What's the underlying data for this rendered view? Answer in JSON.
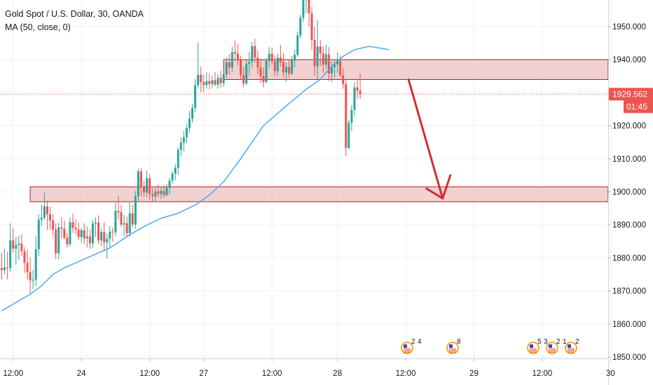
{
  "legend": {
    "title": "Gold Spot / U.S. Dollar, 30, OANDA",
    "indicator": "MA (50, close, 0)"
  },
  "price_tag": {
    "value": "1929.562",
    "countdown": "01:45"
  },
  "colors": {
    "up": "#26a69a",
    "down": "#ef5350",
    "ma": "#42a5f5",
    "zone_fill": "#e8b3b3",
    "zone_stroke": "#b71c1c",
    "arrow": "#d32f2f",
    "tag_bg": "#ef5350",
    "grid": "#eef0f3"
  },
  "event_markers": [
    {
      "position": 581,
      "labels": [
        "2",
        "4"
      ]
    },
    {
      "position": 646,
      "labels": [
        "8"
      ]
    },
    {
      "position": 761,
      "labels": [
        "5",
        "3"
      ]
    },
    {
      "position": 788,
      "labels": [
        "2",
        "1"
      ]
    },
    {
      "position": 815,
      "labels": [
        "2"
      ]
    }
  ],
  "chart_data": {
    "type": "candlestick",
    "title": "Gold Spot / U.S. Dollar, 30, OANDA",
    "symbol": "XAUUSD",
    "timeframe": "30",
    "source": "OANDA",
    "y_axis": {
      "range": [
        1848,
        1958
      ],
      "ticks": [
        "1950.000",
        "1940.000",
        "1930.000",
        "1920.000",
        "1910.000",
        "1900.000",
        "1890.000",
        "1880.000",
        "1870.000",
        "1860.000",
        "1850.000"
      ]
    },
    "x_axis": {
      "ticks": [
        {
          "label": "12:00",
          "bar": 4
        },
        {
          "label": "24",
          "bar": 28
        },
        {
          "label": "12:00",
          "bar": 52
        },
        {
          "label": "27",
          "bar": 71
        },
        {
          "label": "12:00",
          "bar": 95
        },
        {
          "label": "28",
          "bar": 118
        },
        {
          "label": "12:00",
          "bar": 142
        },
        {
          "label": "29",
          "bar": 166
        },
        {
          "label": "12:00",
          "bar": 190
        },
        {
          "label": "30",
          "bar": 214
        }
      ]
    },
    "indicator": "MA (50, close, 0)",
    "current_price": 1929.562,
    "zones": [
      {
        "from_bar": 78,
        "to_bar": 214,
        "low": 1934,
        "high": 1940
      },
      {
        "from_bar": 10,
        "to_bar": 214,
        "low": 1897,
        "high": 1901.5
      }
    ],
    "projection_arrow": {
      "from_bar": 143,
      "from_price": 1934,
      "to_bar": 155,
      "to_price": 1898
    },
    "candles": [
      [
        1876.9,
        1881.6,
        1873.4,
        1876.3
      ],
      [
        1876.3,
        1882.7,
        1875,
        1877.1
      ],
      [
        1877.1,
        1881.9,
        1873.5,
        1876.9
      ],
      [
        1876.9,
        1890.5,
        1875.8,
        1885.3
      ],
      [
        1885.3,
        1889,
        1881.7,
        1882.8
      ],
      [
        1882.8,
        1886.3,
        1877.9,
        1883.9
      ],
      [
        1883.9,
        1886.6,
        1879.3,
        1884.3
      ],
      [
        1884.3,
        1887.1,
        1880.6,
        1882
      ],
      [
        1882,
        1883.3,
        1875.4,
        1878.5
      ],
      [
        1878.5,
        1882.5,
        1873.4,
        1875.7
      ],
      [
        1875.7,
        1880.1,
        1869.2,
        1873.2
      ],
      [
        1873.2,
        1876.4,
        1870.6,
        1873.4
      ],
      [
        1873.4,
        1886.5,
        1871.4,
        1882.6
      ],
      [
        1882.6,
        1893.2,
        1880.6,
        1891.6
      ],
      [
        1891.6,
        1896.2,
        1889.6,
        1892.2
      ],
      [
        1892.2,
        1899.7,
        1891.6,
        1895.6
      ],
      [
        1895.6,
        1897.3,
        1888.4,
        1893.2
      ],
      [
        1893.2,
        1895.6,
        1888.5,
        1891.3
      ],
      [
        1891.3,
        1893.2,
        1886.8,
        1888.6
      ],
      [
        1888.6,
        1890.5,
        1879.6,
        1881.4
      ],
      [
        1881.4,
        1890.6,
        1879.5,
        1889.2
      ],
      [
        1889.2,
        1892.3,
        1885.8,
        1888.8
      ],
      [
        1888.8,
        1891.3,
        1885.5,
        1886.1
      ],
      [
        1886.1,
        1887.6,
        1883.1,
        1884.1
      ],
      [
        1884.1,
        1892.2,
        1883.4,
        1890.8
      ],
      [
        1890.8,
        1893.5,
        1887.6,
        1889.1
      ],
      [
        1889.1,
        1891.7,
        1887.1,
        1888.6
      ],
      [
        1888.6,
        1890.8,
        1885.3,
        1886.3
      ],
      [
        1886.3,
        1889.1,
        1884.6,
        1888.4
      ],
      [
        1888.4,
        1890.5,
        1884.2,
        1885.9
      ],
      [
        1885.9,
        1889.5,
        1883.1,
        1886.5
      ],
      [
        1886.5,
        1888.6,
        1882.7,
        1884.4
      ],
      [
        1884.4,
        1891.6,
        1883,
        1890.4
      ],
      [
        1890.4,
        1892.3,
        1886.3,
        1890.7
      ],
      [
        1890.7,
        1892.9,
        1884.2,
        1885.3
      ],
      [
        1885.3,
        1888.8,
        1883.6,
        1887.8
      ],
      [
        1887.8,
        1890.8,
        1882.2,
        1884.7
      ],
      [
        1884.7,
        1887.3,
        1879.8,
        1885.8
      ],
      [
        1885.8,
        1889.6,
        1883.2,
        1887.9
      ],
      [
        1887.9,
        1889.2,
        1884.9,
        1887.8
      ],
      [
        1887.8,
        1896.8,
        1886.5,
        1894.2
      ],
      [
        1894.2,
        1898.7,
        1891.6,
        1893.8
      ],
      [
        1893.8,
        1896,
        1889.3,
        1890.1
      ],
      [
        1890.1,
        1893,
        1886.5,
        1890.5
      ],
      [
        1890.5,
        1892.5,
        1886.2,
        1887.5
      ],
      [
        1887.5,
        1896.8,
        1886.4,
        1893.5
      ],
      [
        1893.5,
        1896.1,
        1889.3,
        1890.1
      ],
      [
        1890.1,
        1900.2,
        1888.8,
        1898.6
      ],
      [
        1898.6,
        1907,
        1897,
        1906.2
      ],
      [
        1906.2,
        1907.2,
        1898.6,
        1901.4
      ],
      [
        1901.4,
        1903.3,
        1898.5,
        1899.8
      ],
      [
        1899.8,
        1906.4,
        1898.4,
        1904.1
      ],
      [
        1904.1,
        1905.3,
        1897.6,
        1899.3
      ],
      [
        1899.3,
        1901.1,
        1896.8,
        1898.6
      ],
      [
        1898.6,
        1901.3,
        1897.2,
        1900.1
      ],
      [
        1900.1,
        1902.2,
        1898.4,
        1899.3
      ],
      [
        1899.3,
        1901.5,
        1897.9,
        1900.3
      ],
      [
        1900.3,
        1902,
        1898.2,
        1899
      ],
      [
        1899,
        1902.3,
        1898.7,
        1901.2
      ],
      [
        1901.2,
        1904.1,
        1899.2,
        1903.4
      ],
      [
        1903.4,
        1906.2,
        1902.5,
        1905.5
      ],
      [
        1905.5,
        1908.4,
        1903.5,
        1907.3
      ],
      [
        1907.3,
        1913.4,
        1905.1,
        1912.7
      ],
      [
        1912.7,
        1916.5,
        1910.7,
        1914.9
      ],
      [
        1914.9,
        1918.5,
        1912.3,
        1916.5
      ],
      [
        1916.5,
        1920.5,
        1914.7,
        1919.3
      ],
      [
        1919.3,
        1924.5,
        1917.9,
        1922.1
      ],
      [
        1922.1,
        1926.6,
        1921,
        1925.4
      ],
      [
        1925.4,
        1934.2,
        1924.1,
        1932.3
      ],
      [
        1932.3,
        1945.1,
        1931.2,
        1935.4
      ],
      [
        1935.4,
        1937.9,
        1930.1,
        1933.2
      ],
      [
        1933.2,
        1935.6,
        1930.2,
        1932.3
      ],
      [
        1932.3,
        1936.2,
        1931.2,
        1933.5
      ],
      [
        1933.5,
        1935.8,
        1931,
        1932.6
      ],
      [
        1932.6,
        1935.1,
        1931.4,
        1933.8
      ],
      [
        1933.8,
        1936.2,
        1931.9,
        1932.4
      ],
      [
        1932.4,
        1935.6,
        1931.2,
        1934.5
      ],
      [
        1934.5,
        1936.6,
        1931.6,
        1932.9
      ],
      [
        1932.9,
        1936.4,
        1931.8,
        1935.6
      ],
      [
        1935.6,
        1940.8,
        1934.4,
        1939.2
      ],
      [
        1939.2,
        1941.7,
        1935.4,
        1937.6
      ],
      [
        1937.6,
        1943.9,
        1936.3,
        1942.3
      ],
      [
        1942.3,
        1945.7,
        1939.6,
        1941.8
      ],
      [
        1941.8,
        1944.8,
        1938.4,
        1939.8
      ],
      [
        1939.8,
        1941.2,
        1934.2,
        1935.4
      ],
      [
        1935.4,
        1937.8,
        1931.6,
        1932.8
      ],
      [
        1932.8,
        1940.1,
        1932.1,
        1938.7
      ],
      [
        1938.7,
        1942.3,
        1935.1,
        1939.3
      ],
      [
        1939.3,
        1945.4,
        1937.7,
        1944.1
      ],
      [
        1944.1,
        1946.3,
        1939.3,
        1940.6
      ],
      [
        1940.6,
        1942.8,
        1935.6,
        1937.6
      ],
      [
        1937.6,
        1940.2,
        1933,
        1935
      ],
      [
        1935,
        1937.7,
        1931.6,
        1933.2
      ],
      [
        1933.2,
        1940.5,
        1932.8,
        1939.7
      ],
      [
        1939.7,
        1943.8,
        1937.3,
        1941.8
      ],
      [
        1941.8,
        1943.6,
        1938.5,
        1939.4
      ],
      [
        1939.4,
        1941.3,
        1935,
        1936.5
      ],
      [
        1936.5,
        1941.8,
        1935.1,
        1940.6
      ],
      [
        1940.6,
        1944.5,
        1938,
        1939.3
      ],
      [
        1939.3,
        1941.9,
        1934.6,
        1936.1
      ],
      [
        1936.1,
        1939.1,
        1933.3,
        1937.8
      ],
      [
        1937.8,
        1940.1,
        1934.6,
        1935.7
      ],
      [
        1935.7,
        1941.2,
        1935.4,
        1939.8
      ],
      [
        1939.8,
        1943.1,
        1937.7,
        1941.5
      ],
      [
        1941.5,
        1948.6,
        1940.8,
        1947.3
      ],
      [
        1947.3,
        1953.6,
        1946.4,
        1952.7
      ],
      [
        1952.7,
        1960,
        1951.5,
        1958
      ],
      [
        1958,
        1970,
        1954,
        1966
      ],
      [
        1966,
        1970,
        1950,
        1954
      ],
      [
        1954,
        1956,
        1943,
        1946
      ],
      [
        1946,
        1950,
        1935,
        1938
      ],
      [
        1938,
        1952,
        1934,
        1944
      ],
      [
        1944,
        1946,
        1938,
        1942
      ],
      [
        1942,
        1944,
        1936,
        1938.5
      ],
      [
        1938.5,
        1944.5,
        1937.1,
        1941.6
      ],
      [
        1941.6,
        1943.8,
        1933.5,
        1935.8
      ],
      [
        1935.8,
        1939.4,
        1933.2,
        1937.7
      ],
      [
        1937.7,
        1940,
        1934.6,
        1938.5
      ],
      [
        1938.5,
        1942.2,
        1936,
        1939.7
      ],
      [
        1939.7,
        1941.3,
        1934.8,
        1935.3
      ],
      [
        1935.3,
        1937.4,
        1931.2,
        1932.6
      ],
      [
        1932.6,
        1934,
        1910.8,
        1913.3
      ],
      [
        1913.3,
        1921.9,
        1912.8,
        1920.9
      ],
      [
        1920.9,
        1926.2,
        1918.4,
        1924.8
      ],
      [
        1924.8,
        1933.1,
        1923,
        1931.6
      ],
      [
        1931.6,
        1934.1,
        1928.3,
        1930.6
      ],
      [
        1930.6,
        1935.8,
        1928.1,
        1929.6
      ]
    ],
    "moving_average_50": [
      [
        0,
        1864
      ],
      [
        5,
        1866.5
      ],
      [
        10,
        1869
      ],
      [
        14,
        1871.5
      ],
      [
        18,
        1875
      ],
      [
        22,
        1877
      ],
      [
        30,
        1880
      ],
      [
        38,
        1883
      ],
      [
        45,
        1887
      ],
      [
        50,
        1889.5
      ],
      [
        56,
        1892
      ],
      [
        62,
        1893.5
      ],
      [
        68,
        1896
      ],
      [
        73,
        1899
      ],
      [
        78,
        1903
      ],
      [
        84,
        1910
      ],
      [
        92,
        1920
      ],
      [
        100,
        1926
      ],
      [
        107,
        1931
      ],
      [
        112,
        1934
      ],
      [
        116,
        1938
      ],
      [
        120,
        1941
      ],
      [
        124,
        1943
      ],
      [
        129,
        1944
      ],
      [
        133,
        1943.5
      ],
      [
        136,
        1943
      ]
    ]
  }
}
